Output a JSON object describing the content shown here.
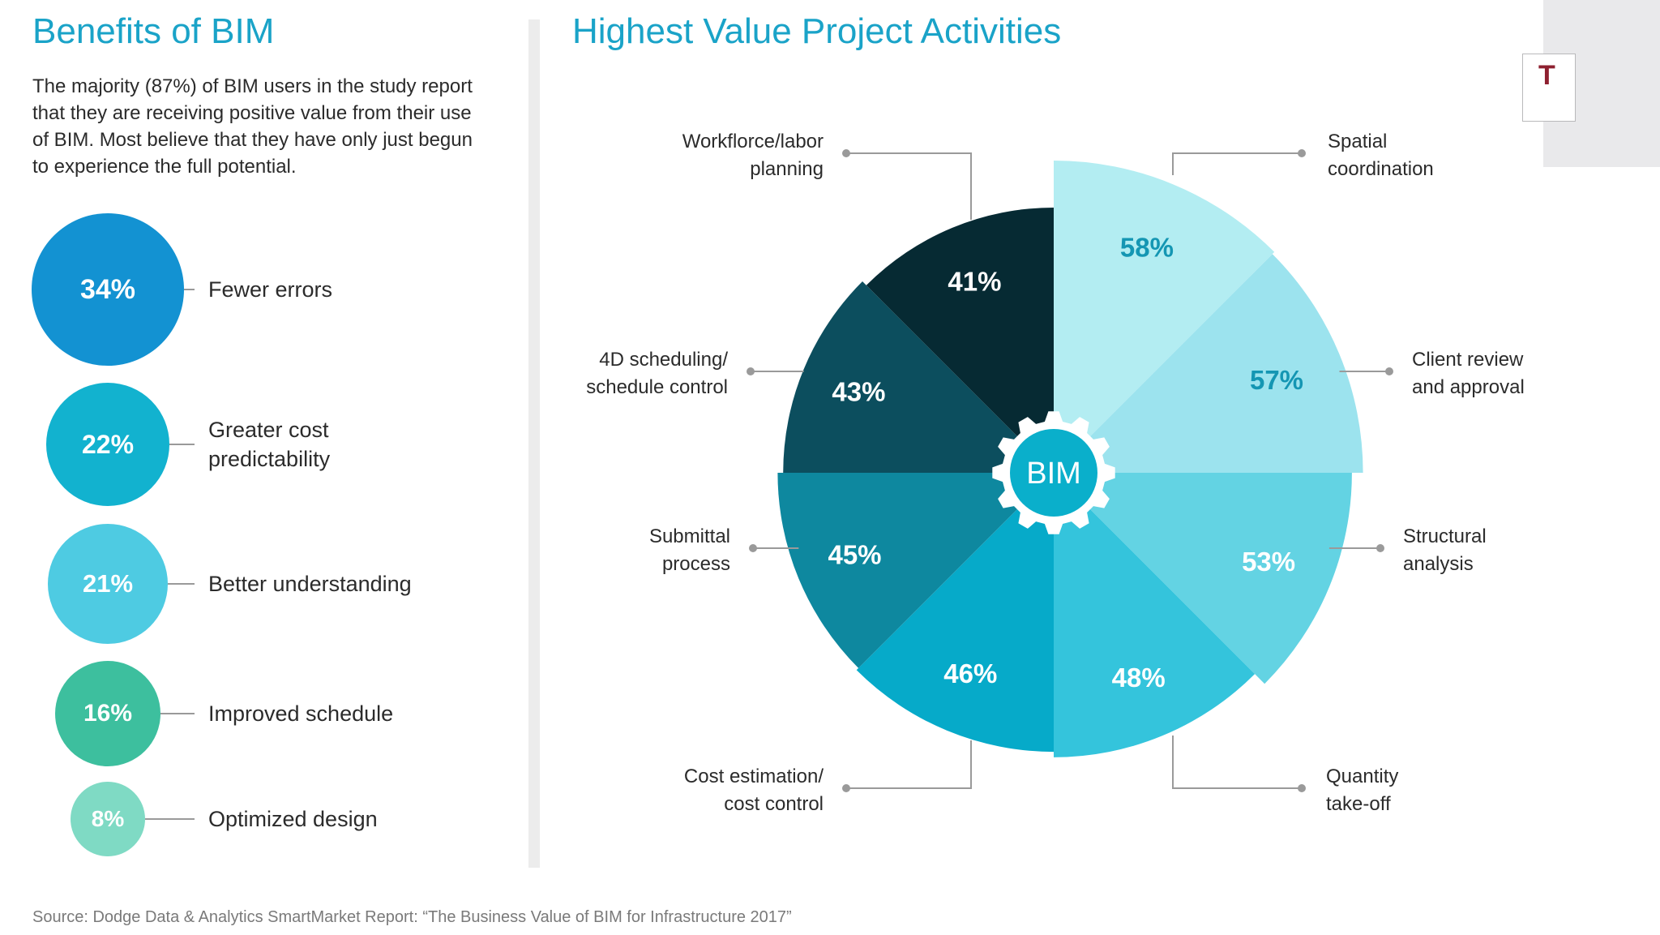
{
  "benefits": {
    "title": "Benefits of BIM",
    "intro": "The majority (87%) of BIM users in the study report that they are receiving positive value from their use of BIM. Most believe that they have only just begun to experience the full potential.",
    "items": [
      {
        "value": "34%",
        "label": "Fewer errors",
        "color": "#1392d2"
      },
      {
        "value": "22%",
        "label": "Greater cost predictability",
        "color": "#12b2cf"
      },
      {
        "value": "21%",
        "label": "Better understanding",
        "color": "#4ecbe2"
      },
      {
        "value": "16%",
        "label": "Improved schedule",
        "color": "#3dbf9e"
      },
      {
        "value": "8%",
        "label": "Optimized design",
        "color": "#7fdac4"
      }
    ]
  },
  "chart_data": {
    "type": "pie",
    "title": "Highest Value Project Activities",
    "center_label": "BIM",
    "categories": [
      "Spatial coordination",
      "Client review and approval",
      "Structural analysis",
      "Quantity take-off",
      "Cost estimation/ cost control",
      "Submittal process",
      "4D scheduling/ schedule control",
      "Workflorce/labor planning"
    ],
    "values": [
      58,
      57,
      53,
      48,
      46,
      45,
      43,
      41
    ],
    "value_labels": [
      "58%",
      "57%",
      "53%",
      "48%",
      "46%",
      "45%",
      "43%",
      "41%"
    ],
    "label_lines": [
      [
        "Spatial",
        "coordination"
      ],
      [
        "Client review",
        "and approval"
      ],
      [
        "Structural",
        "analysis"
      ],
      [
        "Quantity",
        "take-off"
      ],
      [
        "Cost estimation/",
        "cost control"
      ],
      [
        "Submittal",
        "process"
      ],
      [
        "4D scheduling/",
        "schedule control"
      ],
      [
        "Workflorce/labor",
        "planning"
      ]
    ],
    "colors": [
      "#b3edf2",
      "#9ce3ee",
      "#63d3e3",
      "#34c4dc",
      "#06aac9",
      "#0e889f",
      "#0c4e5e",
      "#062a33"
    ],
    "text_colors": [
      "#1496b3",
      "#1496b3",
      "#ffffff",
      "#ffffff",
      "#ffffff",
      "#ffffff",
      "#ffffff",
      "#ffffff"
    ]
  },
  "corner_mark": "T",
  "source": "Source: Dodge Data & Analytics SmartMarket Report: “The Business Value of BIM for Infrastructure 2017”"
}
